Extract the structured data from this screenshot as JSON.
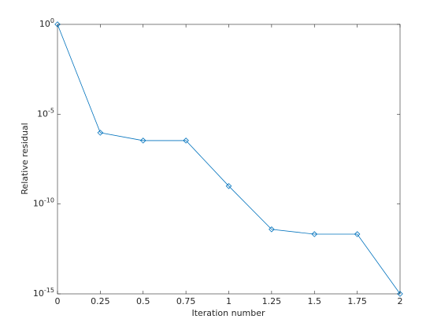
{
  "chart_data": {
    "type": "line",
    "xlabel": "Iteration number",
    "ylabel": "Relative residual",
    "x": [
      0,
      0.25,
      0.5,
      0.75,
      1,
      1.25,
      1.5,
      1.75,
      2
    ],
    "values": [
      1,
      9.3e-07,
      3.4e-07,
      3.4e-07,
      1e-09,
      3.9e-12,
      2.1e-12,
      2.1e-12,
      1e-15
    ],
    "color": "#0072bd",
    "marker": "diamond",
    "xlim": [
      0,
      2
    ],
    "xticks": [
      0,
      0.25,
      0.5,
      0.75,
      1,
      1.25,
      1.5,
      1.75,
      2
    ],
    "ylim": [
      1e-15,
      1
    ],
    "yticks": [
      {
        "value": 1e-15,
        "label": "10^-15"
      },
      {
        "value": 1e-10,
        "label": "10^-10"
      },
      {
        "value": 1e-05,
        "label": "10^-5"
      },
      {
        "value": 1,
        "label": "10^0"
      }
    ],
    "yscale": "log",
    "grid": false
  }
}
